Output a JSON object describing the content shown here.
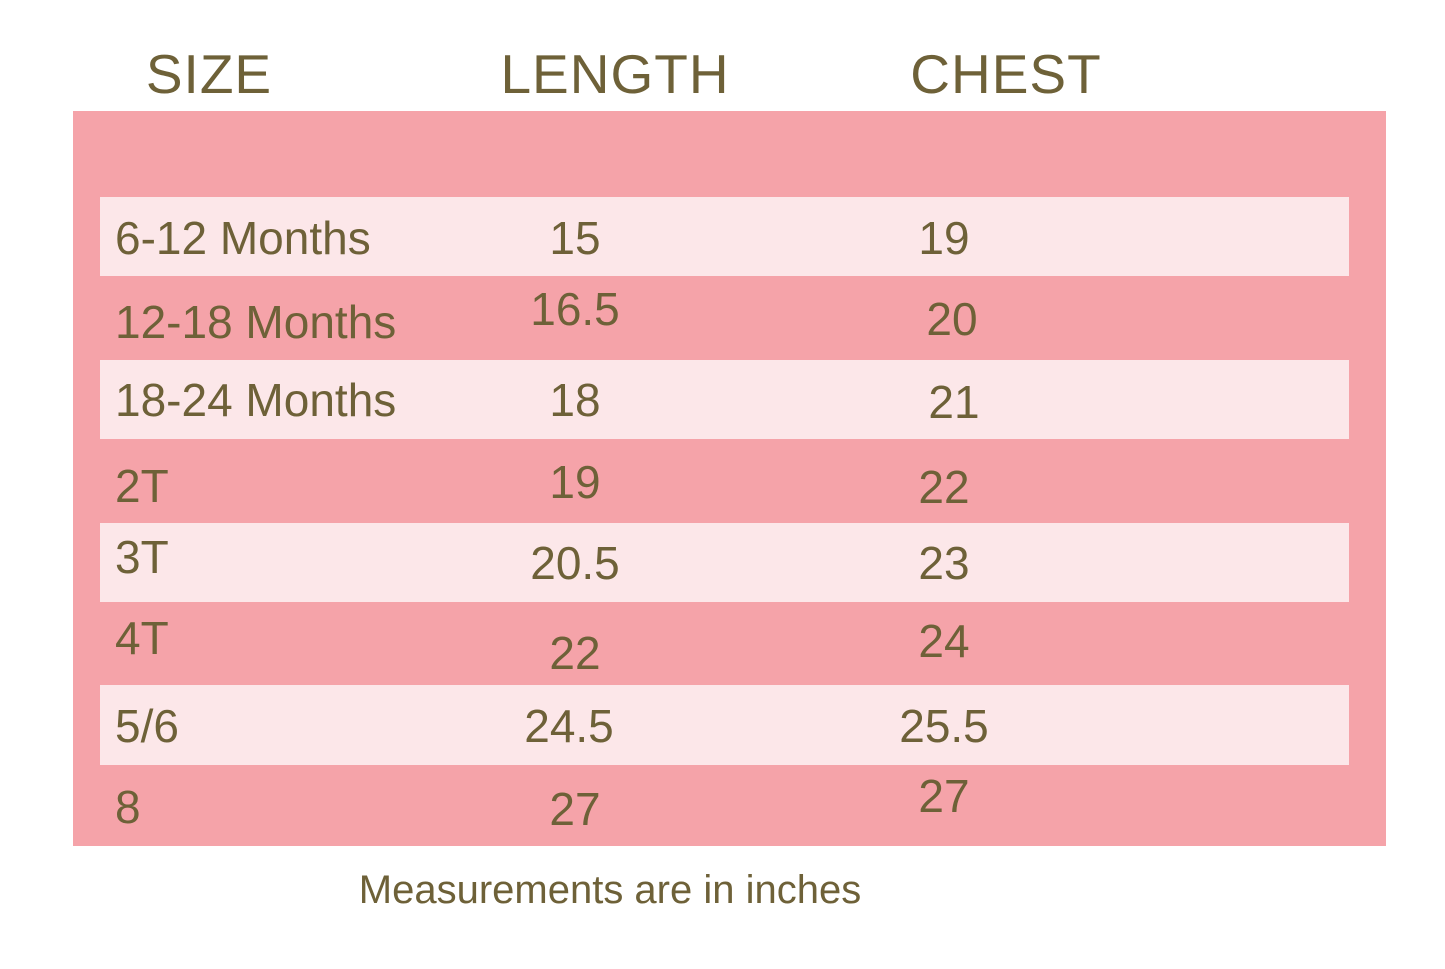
{
  "chart_data": {
    "type": "table",
    "columns": [
      "SIZE",
      "LENGTH",
      "CHEST"
    ],
    "rows": [
      {
        "size": "6-12 Months",
        "length": "15",
        "chest": "19"
      },
      {
        "size": "12-18 Months",
        "length": "16.5",
        "chest": "20"
      },
      {
        "size": "18-24 Months",
        "length": "18",
        "chest": "21"
      },
      {
        "size": "2T",
        "length": "19",
        "chest": "22"
      },
      {
        "size": "3T",
        "length": "20.5",
        "chest": "23"
      },
      {
        "size": "4T",
        "length": "22",
        "chest": "24"
      },
      {
        "size": "5/6",
        "length": "24.5",
        "chest": "25.5"
      },
      {
        "size": "8",
        "length": "27",
        "chest": "27"
      }
    ],
    "note": "Measurements are in inches",
    "units": "inches",
    "layout": {
      "legend": "none",
      "grid": "zebra-stripes",
      "stripe_pattern": "alternating light rows starting with row 1"
    }
  },
  "colors": {
    "background": "#FFFFFF",
    "panel_pink": "#F5A3A9",
    "stripe_pink": "#FCE7E9",
    "text_olive": "#6E6138"
  }
}
